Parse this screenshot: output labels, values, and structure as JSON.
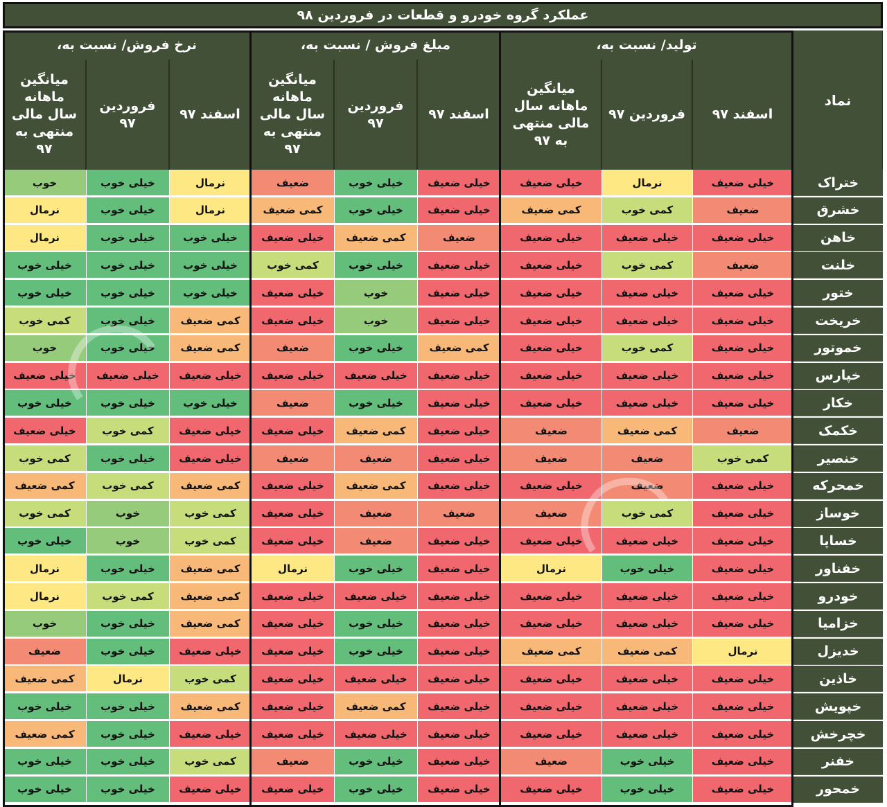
{
  "title": "عملکرد گروه خودرو و قطعات در فروردین ۹۸",
  "header": {
    "symbol_label": "نماد",
    "groups": [
      {
        "title": "تولید/ نسبت به،",
        "subs": [
          "اسفند ۹۷",
          "فروردین ۹۷",
          "میانگین ماهانه سال مالی منتهی به ۹۷"
        ]
      },
      {
        "title": "مبلغ فروش / نسبت به،",
        "subs": [
          "اسفند ۹۷",
          "فروردین ۹۷",
          "میانگین ماهانه سال مالی منتهی به ۹۷"
        ]
      },
      {
        "title": "نرخ فروش/ نسبت به،",
        "subs": [
          "اسفند ۹۷",
          "فروردین ۹۷",
          "میانگین ماهانه سال مالی منتهی به ۹۷"
        ]
      }
    ]
  },
  "colors": {
    "خیلی ضعیف": "#f0686d",
    "ضعیف": "#f38b74",
    "کمی ضعیف": "#f8b978",
    "نرمال": "#fde883",
    "کمی خوب": "#c7dd7b",
    "خوب": "#96cb7c",
    "خیلی خوب": "#63be7b"
  },
  "rows": [
    {
      "symbol": "ختراک",
      "values": [
        "خیلی ضعیف",
        "نرمال",
        "خیلی ضعیف",
        "خیلی ضعیف",
        "خیلی خوب",
        "ضعیف",
        "نرمال",
        "خیلی خوب",
        "خوب"
      ]
    },
    {
      "symbol": "خشرق",
      "values": [
        "ضعیف",
        "کمی خوب",
        "کمی ضعیف",
        "خیلی ضعیف",
        "خیلی خوب",
        "کمی ضعیف",
        "نرمال",
        "خیلی خوب",
        "نرمال"
      ]
    },
    {
      "symbol": "خاهن",
      "values": [
        "خیلی ضعیف",
        "خیلی ضعیف",
        "خیلی ضعیف",
        "ضعیف",
        "کمی ضعیف",
        "خیلی ضعیف",
        "خیلی خوب",
        "خیلی خوب",
        "نرمال"
      ]
    },
    {
      "symbol": "خلنت",
      "values": [
        "ضعیف",
        "کمی خوب",
        "خیلی ضعیف",
        "خیلی ضعیف",
        "خیلی خوب",
        "کمی خوب",
        "خیلی خوب",
        "خیلی خوب",
        "خیلی خوب"
      ]
    },
    {
      "symbol": "ختور",
      "values": [
        "خیلی ضعیف",
        "خیلی ضعیف",
        "خیلی ضعیف",
        "خیلی ضعیف",
        "خوب",
        "خیلی ضعیف",
        "خیلی خوب",
        "خیلی خوب",
        "خیلی خوب"
      ]
    },
    {
      "symbol": "خریخت",
      "values": [
        "خیلی ضعیف",
        "خیلی ضعیف",
        "خیلی ضعیف",
        "خیلی ضعیف",
        "خوب",
        "خیلی ضعیف",
        "کمی ضعیف",
        "خیلی خوب",
        "کمی خوب"
      ]
    },
    {
      "symbol": "خموتور",
      "values": [
        "خیلی ضعیف",
        "کمی خوب",
        "خیلی ضعیف",
        "کمی ضعیف",
        "خیلی خوب",
        "ضعیف",
        "کمی ضعیف",
        "خیلی خوب",
        "خوب"
      ]
    },
    {
      "symbol": "خپارس",
      "values": [
        "خیلی ضعیف",
        "خیلی ضعیف",
        "خیلی ضعیف",
        "خیلی ضعیف",
        "خیلی ضعیف",
        "خیلی ضعیف",
        "خیلی ضعیف",
        "خیلی ضعیف",
        "خیلی ضعیف"
      ]
    },
    {
      "symbol": "خکار",
      "values": [
        "خیلی ضعیف",
        "خیلی ضعیف",
        "خیلی ضعیف",
        "خیلی ضعیف",
        "خیلی خوب",
        "ضعیف",
        "خیلی خوب",
        "خیلی خوب",
        "خیلی خوب"
      ]
    },
    {
      "symbol": "خکمک",
      "values": [
        "ضعیف",
        "کمی ضعیف",
        "ضعیف",
        "خیلی ضعیف",
        "کمی ضعیف",
        "خیلی ضعیف",
        "خیلی ضعیف",
        "کمی خوب",
        "خیلی ضعیف"
      ]
    },
    {
      "symbol": "خنصیر",
      "values": [
        "کمی خوب",
        "ضعیف",
        "ضعیف",
        "خیلی ضعیف",
        "ضعیف",
        "ضعیف",
        "خیلی ضعیف",
        "خیلی خوب",
        "کمی خوب"
      ]
    },
    {
      "symbol": "خمحرکه",
      "values": [
        "خیلی ضعیف",
        "ضعیف",
        "خیلی ضعیف",
        "خیلی ضعیف",
        "کمی ضعیف",
        "خیلی ضعیف",
        "کمی ضعیف",
        "کمی خوب",
        "کمی ضعیف"
      ]
    },
    {
      "symbol": "خوساز",
      "values": [
        "خیلی ضعیف",
        "کمی خوب",
        "ضعیف",
        "ضعیف",
        "ضعیف",
        "خیلی ضعیف",
        "کمی خوب",
        "خوب",
        "کمی خوب"
      ]
    },
    {
      "symbol": "خساپا",
      "values": [
        "خیلی ضعیف",
        "خیلی ضعیف",
        "خیلی ضعیف",
        "خیلی ضعیف",
        "ضعیف",
        "خیلی ضعیف",
        "کمی خوب",
        "خوب",
        "خیلی خوب"
      ]
    },
    {
      "symbol": "خفناور",
      "values": [
        "خیلی ضعیف",
        "خیلی خوب",
        "نرمال",
        "خیلی ضعیف",
        "خیلی خوب",
        "نرمال",
        "کمی ضعیف",
        "خیلی خوب",
        "نرمال"
      ]
    },
    {
      "symbol": "خودرو",
      "values": [
        "خیلی ضعیف",
        "خیلی ضعیف",
        "خیلی ضعیف",
        "خیلی ضعیف",
        "خیلی ضعیف",
        "خیلی ضعیف",
        "کمی ضعیف",
        "کمی خوب",
        "نرمال"
      ]
    },
    {
      "symbol": "خزامیا",
      "values": [
        "خیلی ضعیف",
        "خیلی ضعیف",
        "خیلی ضعیف",
        "خیلی ضعیف",
        "خیلی خوب",
        "خیلی ضعیف",
        "کمی ضعیف",
        "خیلی خوب",
        "خوب"
      ]
    },
    {
      "symbol": "خدیزل",
      "values": [
        "نرمال",
        "کمی ضعیف",
        "کمی ضعیف",
        "خیلی ضعیف",
        "خیلی خوب",
        "خیلی ضعیف",
        "خیلی ضعیف",
        "خیلی خوب",
        "ضعیف"
      ]
    },
    {
      "symbol": "خاذین",
      "values": [
        "خیلی ضعیف",
        "خیلی ضعیف",
        "خیلی ضعیف",
        "خیلی ضعیف",
        "خیلی ضعیف",
        "خیلی ضعیف",
        "کمی خوب",
        "نرمال",
        "کمی ضعیف"
      ]
    },
    {
      "symbol": "خپویش",
      "values": [
        "خیلی ضعیف",
        "خیلی ضعیف",
        "خیلی ضعیف",
        "خیلی ضعیف",
        "کمی ضعیف",
        "خیلی ضعیف",
        "کمی ضعیف",
        "خیلی خوب",
        "خیلی خوب"
      ]
    },
    {
      "symbol": "خچرخش",
      "values": [
        "خیلی ضعیف",
        "خیلی ضعیف",
        "خیلی ضعیف",
        "خیلی ضعیف",
        "خیلی ضعیف",
        "خیلی ضعیف",
        "خیلی ضعیف",
        "خیلی خوب",
        "کمی ضعیف"
      ]
    },
    {
      "symbol": "خفنر",
      "values": [
        "خیلی ضعیف",
        "خیلی خوب",
        "ضعیف",
        "خیلی ضعیف",
        "خیلی خوب",
        "ضعیف",
        "کمی خوب",
        "خیلی خوب",
        "خیلی خوب"
      ]
    },
    {
      "symbol": "خمحور",
      "values": [
        "خیلی ضعیف",
        "خیلی خوب",
        "خیلی ضعیف",
        "خیلی ضعیف",
        "خیلی خوب",
        "خیلی ضعیف",
        "خیلی ضعیف",
        "خیلی خوب",
        "خیلی خوب"
      ]
    }
  ]
}
